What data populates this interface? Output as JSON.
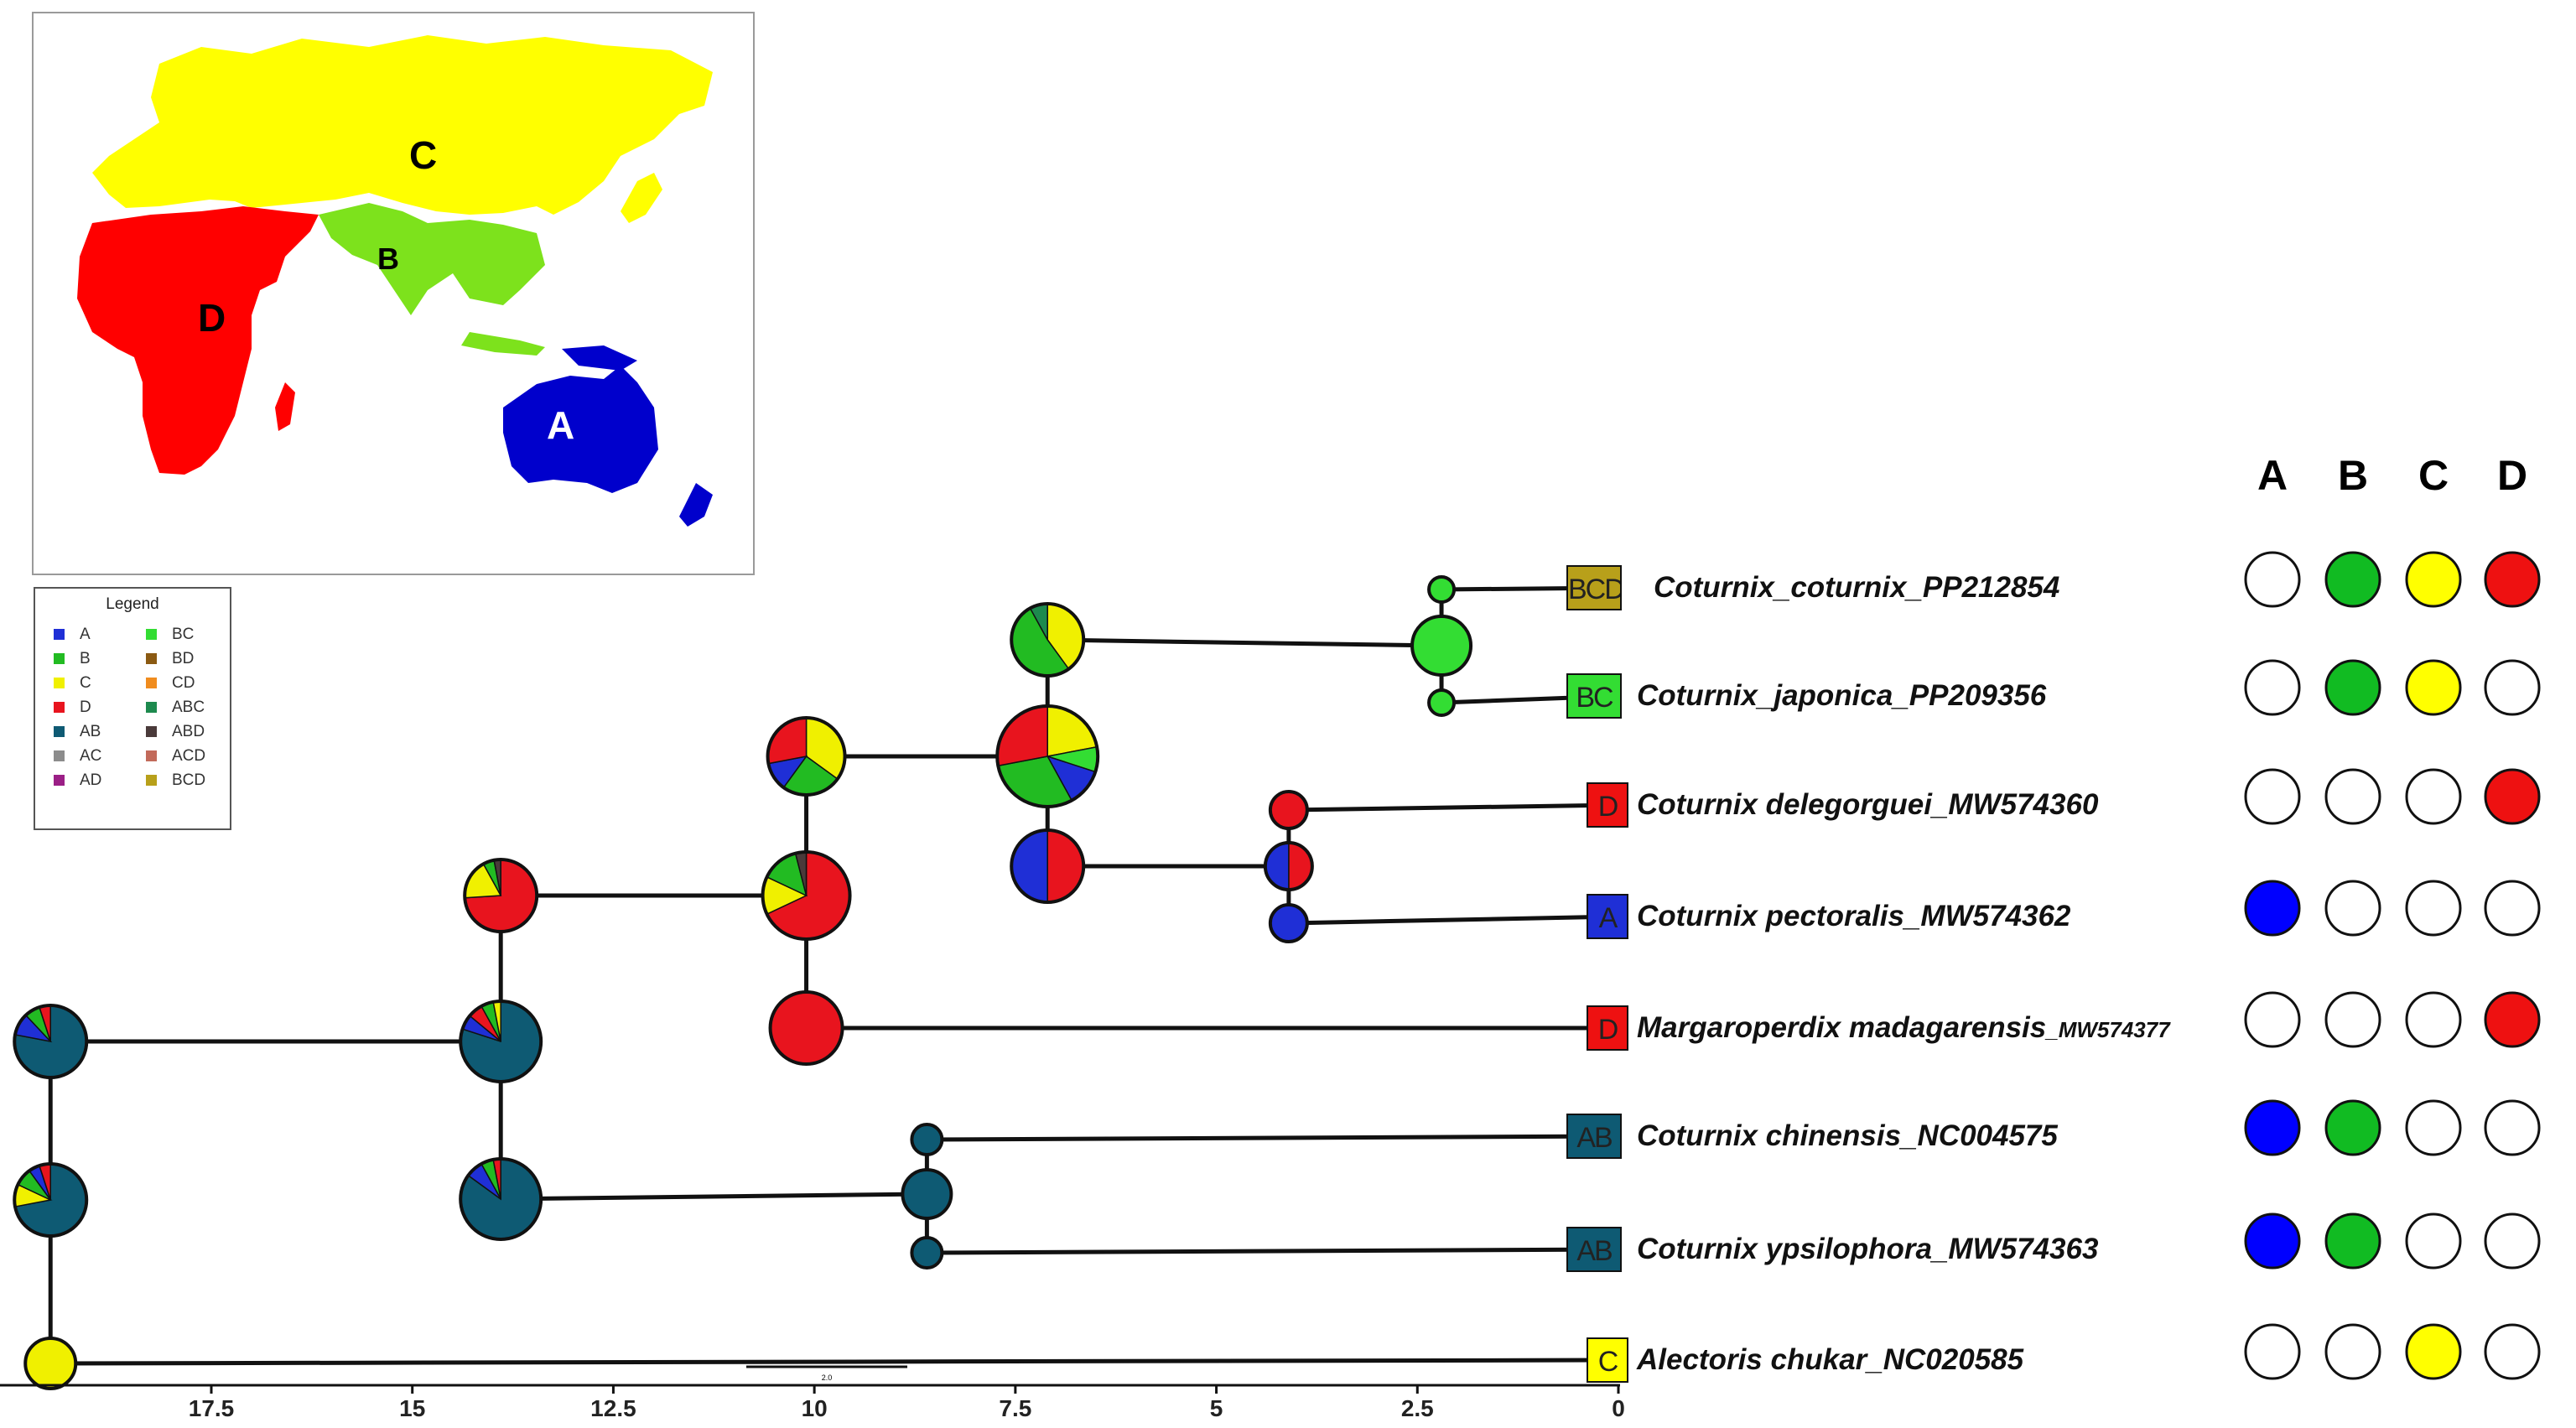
{
  "map": {
    "regions": [
      {
        "code": "A",
        "color": "#0000cc",
        "label_color": "#ffffff"
      },
      {
        "code": "B",
        "color": "#7de21c",
        "label_color": "#000000"
      },
      {
        "code": "C",
        "color": "#ffff00",
        "label_color": "#000000"
      },
      {
        "code": "D",
        "color": "#ff0000",
        "label_color": "#000000"
      }
    ]
  },
  "legend": {
    "title": "Legend",
    "items": [
      {
        "label": "A",
        "color": "#1f2fd6"
      },
      {
        "label": "B",
        "color": "#22bb22"
      },
      {
        "label": "C",
        "color": "#f0f000"
      },
      {
        "label": "D",
        "color": "#e8141e"
      },
      {
        "label": "AB",
        "color": "#0e5a73"
      },
      {
        "label": "AC",
        "color": "#8c8c8c"
      },
      {
        "label": "AD",
        "color": "#9b1f86"
      },
      {
        "label": "BC",
        "color": "#33dd33"
      },
      {
        "label": "BD",
        "color": "#8b5a12"
      },
      {
        "label": "CD",
        "color": "#f08c1e"
      },
      {
        "label": "ABC",
        "color": "#1d8a4e"
      },
      {
        "label": "ABD",
        "color": "#4a3a3a"
      },
      {
        "label": "ACD",
        "color": "#c26a5a"
      },
      {
        "label": "BCD",
        "color": "#b8a01a"
      }
    ]
  },
  "presence_matrix": {
    "columns": [
      "A",
      "B",
      "C",
      "D"
    ],
    "colors": {
      "A": "#0000ff",
      "B": "#11bb22",
      "C": "#ffff00",
      "D": "#ee1111"
    }
  },
  "taxa": [
    {
      "name": "Coturnix_coturnix_PP212854",
      "accession": "",
      "range": "BCD",
      "range_color": "#b8a01a",
      "presence": [
        false,
        true,
        true,
        true
      ]
    },
    {
      "name": "Coturnix_japonica_PP209356",
      "accession": "",
      "range": "BC",
      "range_color": "#33dd33",
      "presence": [
        false,
        true,
        true,
        false
      ]
    },
    {
      "name": "Coturnix delegorguei_MW574360",
      "accession": "",
      "range": "D",
      "range_color": "#ee1111",
      "presence": [
        false,
        false,
        false,
        true
      ]
    },
    {
      "name": "Coturnix pectoralis_MW574362",
      "accession": "",
      "range": "A",
      "range_color": "#1f2fd6",
      "presence": [
        true,
        false,
        false,
        false
      ]
    },
    {
      "name": "Margaroperdix madagarensis",
      "accession": "_MW574377",
      "range": "D",
      "range_color": "#ee1111",
      "presence": [
        false,
        false,
        false,
        true
      ]
    },
    {
      "name": "Coturnix chinensis_NC004575",
      "accession": "",
      "range": "AB",
      "range_color": "#0e5a73",
      "presence": [
        true,
        true,
        false,
        false
      ]
    },
    {
      "name": "Coturnix ypsilophora_MW574363",
      "accession": "",
      "range": "AB",
      "range_color": "#0e5a73",
      "presence": [
        true,
        true,
        false,
        false
      ]
    },
    {
      "name": "Alectoris chukar_NC020585",
      "accession": "",
      "range": "C",
      "range_color": "#ffff00",
      "presence": [
        false,
        false,
        true,
        false
      ]
    }
  ],
  "axis": {
    "ticks": [
      "17.5",
      "15",
      "12.5",
      "10",
      "7.5",
      "5",
      "2.5",
      "0"
    ],
    "tick_values": [
      17.5,
      15,
      12.5,
      10,
      7.5,
      5,
      2.5,
      0
    ],
    "scale_bar_label": "2.0"
  },
  "nodes": [
    {
      "id": "root",
      "age": 19.5,
      "slices": [
        {
          "area": "C",
          "value": 1
        }
      ]
    },
    {
      "id": "n1",
      "age": 19.5,
      "slices": [
        {
          "area": "AB",
          "value": 0.72
        },
        {
          "area": "C",
          "value": 0.1
        },
        {
          "area": "B",
          "value": 0.08
        },
        {
          "area": "A",
          "value": 0.05
        },
        {
          "area": "D",
          "value": 0.05
        }
      ]
    },
    {
      "id": "n1b",
      "age": 19.5,
      "slices": [
        {
          "area": "AB",
          "value": 0.78
        },
        {
          "area": "A",
          "value": 0.1
        },
        {
          "area": "B",
          "value": 0.07
        },
        {
          "area": "D",
          "value": 0.05
        }
      ]
    },
    {
      "id": "n2",
      "age": 13.9,
      "slices": [
        {
          "area": "AB",
          "value": 0.85
        },
        {
          "area": "A",
          "value": 0.07
        },
        {
          "area": "B",
          "value": 0.05
        },
        {
          "area": "D",
          "value": 0.03
        }
      ]
    },
    {
      "id": "n2b",
      "age": 13.9,
      "slices": [
        {
          "area": "AB",
          "value": 0.8
        },
        {
          "area": "A",
          "value": 0.06
        },
        {
          "area": "D",
          "value": 0.06
        },
        {
          "area": "B",
          "value": 0.05
        },
        {
          "area": "C",
          "value": 0.03
        }
      ]
    },
    {
      "id": "n3",
      "age": 13.9,
      "slices": [
        {
          "area": "D",
          "value": 0.74
        },
        {
          "area": "C",
          "value": 0.18
        },
        {
          "area": "B",
          "value": 0.05
        },
        {
          "area": "ABD",
          "value": 0.03
        }
      ]
    },
    {
      "id": "n4",
      "age": 10.1,
      "slices": [
        {
          "area": "D",
          "value": 0.68
        },
        {
          "area": "C",
          "value": 0.14
        },
        {
          "area": "B",
          "value": 0.14
        },
        {
          "area": "ABD",
          "value": 0.04
        }
      ]
    },
    {
      "id": "n4b",
      "age": 10.1,
      "slices": [
        {
          "area": "D",
          "value": 1
        }
      ]
    },
    {
      "id": "n5",
      "age": 10.1,
      "slices": [
        {
          "area": "C",
          "value": 0.35
        },
        {
          "area": "B",
          "value": 0.25
        },
        {
          "area": "A",
          "value": 0.12
        },
        {
          "area": "D",
          "value": 0.28
        }
      ]
    },
    {
      "id": "n6",
      "age": 7.1,
      "slices": [
        {
          "area": "C",
          "value": 0.22
        },
        {
          "area": "BC",
          "value": 0.08
        },
        {
          "area": "A",
          "value": 0.12
        },
        {
          "area": "B",
          "value": 0.3
        },
        {
          "area": "D",
          "value": 0.28
        }
      ]
    },
    {
      "id": "n6b",
      "age": 7.1,
      "slices": [
        {
          "area": "C",
          "value": 0.4
        },
        {
          "area": "B",
          "value": 0.52
        },
        {
          "area": "ABC",
          "value": 0.08
        }
      ]
    },
    {
      "id": "n7",
      "age": 7.1,
      "slices": [
        {
          "area": "D",
          "value": 0.5
        },
        {
          "area": "A",
          "value": 0.5
        }
      ]
    },
    {
      "id": "n8",
      "age": 2.2,
      "slices": [
        {
          "area": "BC",
          "value": 1
        }
      ]
    },
    {
      "id": "n8a",
      "age": 2.2,
      "slices": [
        {
          "area": "BC",
          "value": 1
        }
      ]
    },
    {
      "id": "n8b",
      "age": 2.2,
      "slices": [
        {
          "area": "BC",
          "value": 1
        }
      ]
    },
    {
      "id": "n9",
      "age": 4.1,
      "slices": [
        {
          "area": "D",
          "value": 0.5
        },
        {
          "area": "A",
          "value": 0.5
        }
      ]
    },
    {
      "id": "n9a",
      "age": 4.1,
      "slices": [
        {
          "area": "D",
          "value": 1
        }
      ]
    },
    {
      "id": "n9b",
      "age": 4.1,
      "slices": [
        {
          "area": "A",
          "value": 1
        }
      ]
    },
    {
      "id": "n10",
      "age": 8.6,
      "slices": [
        {
          "area": "AB",
          "value": 1
        }
      ]
    },
    {
      "id": "n10a",
      "age": 8.6,
      "slices": [
        {
          "area": "AB",
          "value": 1
        }
      ]
    },
    {
      "id": "n10b",
      "age": 8.6,
      "slices": [
        {
          "area": "AB",
          "value": 1
        }
      ]
    }
  ]
}
